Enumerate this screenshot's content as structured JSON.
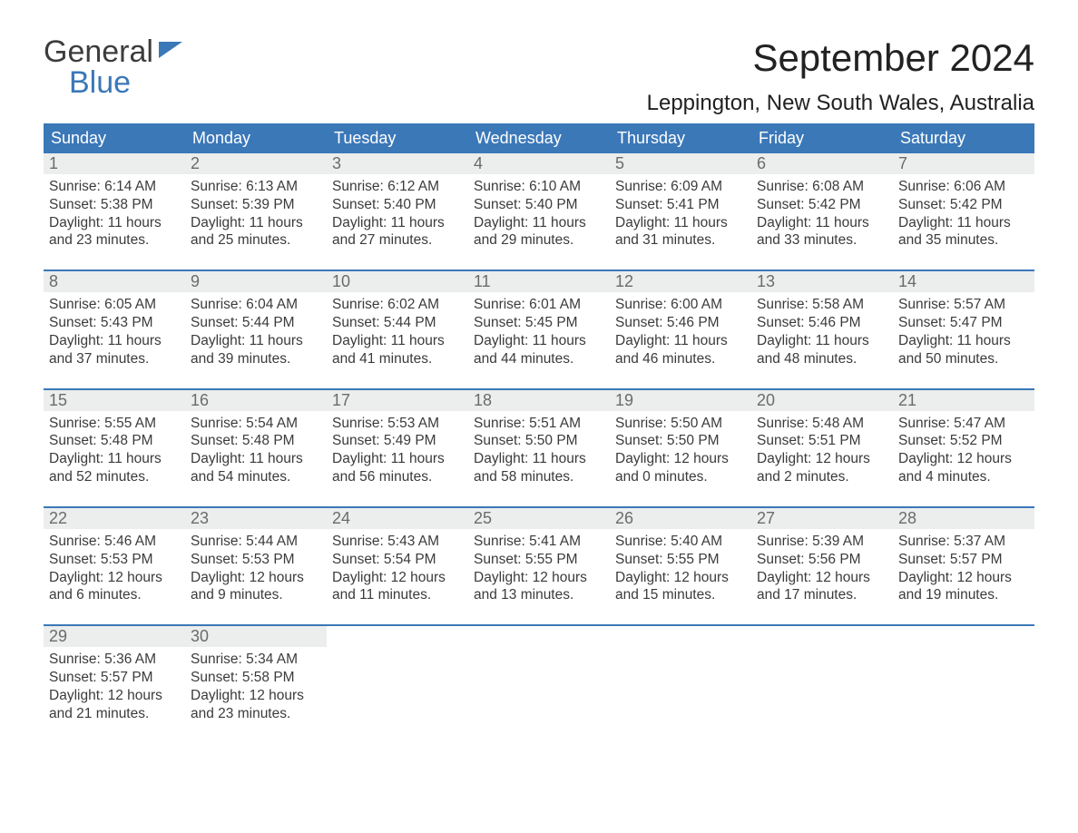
{
  "brand": {
    "word1": "General",
    "word2": "Blue",
    "color": "#3b78b8"
  },
  "title": "September 2024",
  "location": "Leppington, New South Wales, Australia",
  "columns": [
    "Sunday",
    "Monday",
    "Tuesday",
    "Wednesday",
    "Thursday",
    "Friday",
    "Saturday"
  ],
  "colors": {
    "header_bg": "#3b78b8",
    "header_text": "#ffffff",
    "daynum_bg": "#eceded",
    "daynum_text": "#6b6b6b",
    "body_text": "#3b3b3b",
    "rule": "#3b78b8"
  },
  "weeks": [
    [
      {
        "n": "1",
        "sunrise": "Sunrise: 6:14 AM",
        "sunset": "Sunset: 5:38 PM",
        "d1": "Daylight: 11 hours",
        "d2": "and 23 minutes."
      },
      {
        "n": "2",
        "sunrise": "Sunrise: 6:13 AM",
        "sunset": "Sunset: 5:39 PM",
        "d1": "Daylight: 11 hours",
        "d2": "and 25 minutes."
      },
      {
        "n": "3",
        "sunrise": "Sunrise: 6:12 AM",
        "sunset": "Sunset: 5:40 PM",
        "d1": "Daylight: 11 hours",
        "d2": "and 27 minutes."
      },
      {
        "n": "4",
        "sunrise": "Sunrise: 6:10 AM",
        "sunset": "Sunset: 5:40 PM",
        "d1": "Daylight: 11 hours",
        "d2": "and 29 minutes."
      },
      {
        "n": "5",
        "sunrise": "Sunrise: 6:09 AM",
        "sunset": "Sunset: 5:41 PM",
        "d1": "Daylight: 11 hours",
        "d2": "and 31 minutes."
      },
      {
        "n": "6",
        "sunrise": "Sunrise: 6:08 AM",
        "sunset": "Sunset: 5:42 PM",
        "d1": "Daylight: 11 hours",
        "d2": "and 33 minutes."
      },
      {
        "n": "7",
        "sunrise": "Sunrise: 6:06 AM",
        "sunset": "Sunset: 5:42 PM",
        "d1": "Daylight: 11 hours",
        "d2": "and 35 minutes."
      }
    ],
    [
      {
        "n": "8",
        "sunrise": "Sunrise: 6:05 AM",
        "sunset": "Sunset: 5:43 PM",
        "d1": "Daylight: 11 hours",
        "d2": "and 37 minutes."
      },
      {
        "n": "9",
        "sunrise": "Sunrise: 6:04 AM",
        "sunset": "Sunset: 5:44 PM",
        "d1": "Daylight: 11 hours",
        "d2": "and 39 minutes."
      },
      {
        "n": "10",
        "sunrise": "Sunrise: 6:02 AM",
        "sunset": "Sunset: 5:44 PM",
        "d1": "Daylight: 11 hours",
        "d2": "and 41 minutes."
      },
      {
        "n": "11",
        "sunrise": "Sunrise: 6:01 AM",
        "sunset": "Sunset: 5:45 PM",
        "d1": "Daylight: 11 hours",
        "d2": "and 44 minutes."
      },
      {
        "n": "12",
        "sunrise": "Sunrise: 6:00 AM",
        "sunset": "Sunset: 5:46 PM",
        "d1": "Daylight: 11 hours",
        "d2": "and 46 minutes."
      },
      {
        "n": "13",
        "sunrise": "Sunrise: 5:58 AM",
        "sunset": "Sunset: 5:46 PM",
        "d1": "Daylight: 11 hours",
        "d2": "and 48 minutes."
      },
      {
        "n": "14",
        "sunrise": "Sunrise: 5:57 AM",
        "sunset": "Sunset: 5:47 PM",
        "d1": "Daylight: 11 hours",
        "d2": "and 50 minutes."
      }
    ],
    [
      {
        "n": "15",
        "sunrise": "Sunrise: 5:55 AM",
        "sunset": "Sunset: 5:48 PM",
        "d1": "Daylight: 11 hours",
        "d2": "and 52 minutes."
      },
      {
        "n": "16",
        "sunrise": "Sunrise: 5:54 AM",
        "sunset": "Sunset: 5:48 PM",
        "d1": "Daylight: 11 hours",
        "d2": "and 54 minutes."
      },
      {
        "n": "17",
        "sunrise": "Sunrise: 5:53 AM",
        "sunset": "Sunset: 5:49 PM",
        "d1": "Daylight: 11 hours",
        "d2": "and 56 minutes."
      },
      {
        "n": "18",
        "sunrise": "Sunrise: 5:51 AM",
        "sunset": "Sunset: 5:50 PM",
        "d1": "Daylight: 11 hours",
        "d2": "and 58 minutes."
      },
      {
        "n": "19",
        "sunrise": "Sunrise: 5:50 AM",
        "sunset": "Sunset: 5:50 PM",
        "d1": "Daylight: 12 hours",
        "d2": "and 0 minutes."
      },
      {
        "n": "20",
        "sunrise": "Sunrise: 5:48 AM",
        "sunset": "Sunset: 5:51 PM",
        "d1": "Daylight: 12 hours",
        "d2": "and 2 minutes."
      },
      {
        "n": "21",
        "sunrise": "Sunrise: 5:47 AM",
        "sunset": "Sunset: 5:52 PM",
        "d1": "Daylight: 12 hours",
        "d2": "and 4 minutes."
      }
    ],
    [
      {
        "n": "22",
        "sunrise": "Sunrise: 5:46 AM",
        "sunset": "Sunset: 5:53 PM",
        "d1": "Daylight: 12 hours",
        "d2": "and 6 minutes."
      },
      {
        "n": "23",
        "sunrise": "Sunrise: 5:44 AM",
        "sunset": "Sunset: 5:53 PM",
        "d1": "Daylight: 12 hours",
        "d2": "and 9 minutes."
      },
      {
        "n": "24",
        "sunrise": "Sunrise: 5:43 AM",
        "sunset": "Sunset: 5:54 PM",
        "d1": "Daylight: 12 hours",
        "d2": "and 11 minutes."
      },
      {
        "n": "25",
        "sunrise": "Sunrise: 5:41 AM",
        "sunset": "Sunset: 5:55 PM",
        "d1": "Daylight: 12 hours",
        "d2": "and 13 minutes."
      },
      {
        "n": "26",
        "sunrise": "Sunrise: 5:40 AM",
        "sunset": "Sunset: 5:55 PM",
        "d1": "Daylight: 12 hours",
        "d2": "and 15 minutes."
      },
      {
        "n": "27",
        "sunrise": "Sunrise: 5:39 AM",
        "sunset": "Sunset: 5:56 PM",
        "d1": "Daylight: 12 hours",
        "d2": "and 17 minutes."
      },
      {
        "n": "28",
        "sunrise": "Sunrise: 5:37 AM",
        "sunset": "Sunset: 5:57 PM",
        "d1": "Daylight: 12 hours",
        "d2": "and 19 minutes."
      }
    ],
    [
      {
        "n": "29",
        "sunrise": "Sunrise: 5:36 AM",
        "sunset": "Sunset: 5:57 PM",
        "d1": "Daylight: 12 hours",
        "d2": "and 21 minutes."
      },
      {
        "n": "30",
        "sunrise": "Sunrise: 5:34 AM",
        "sunset": "Sunset: 5:58 PM",
        "d1": "Daylight: 12 hours",
        "d2": "and 23 minutes."
      },
      null,
      null,
      null,
      null,
      null
    ]
  ]
}
